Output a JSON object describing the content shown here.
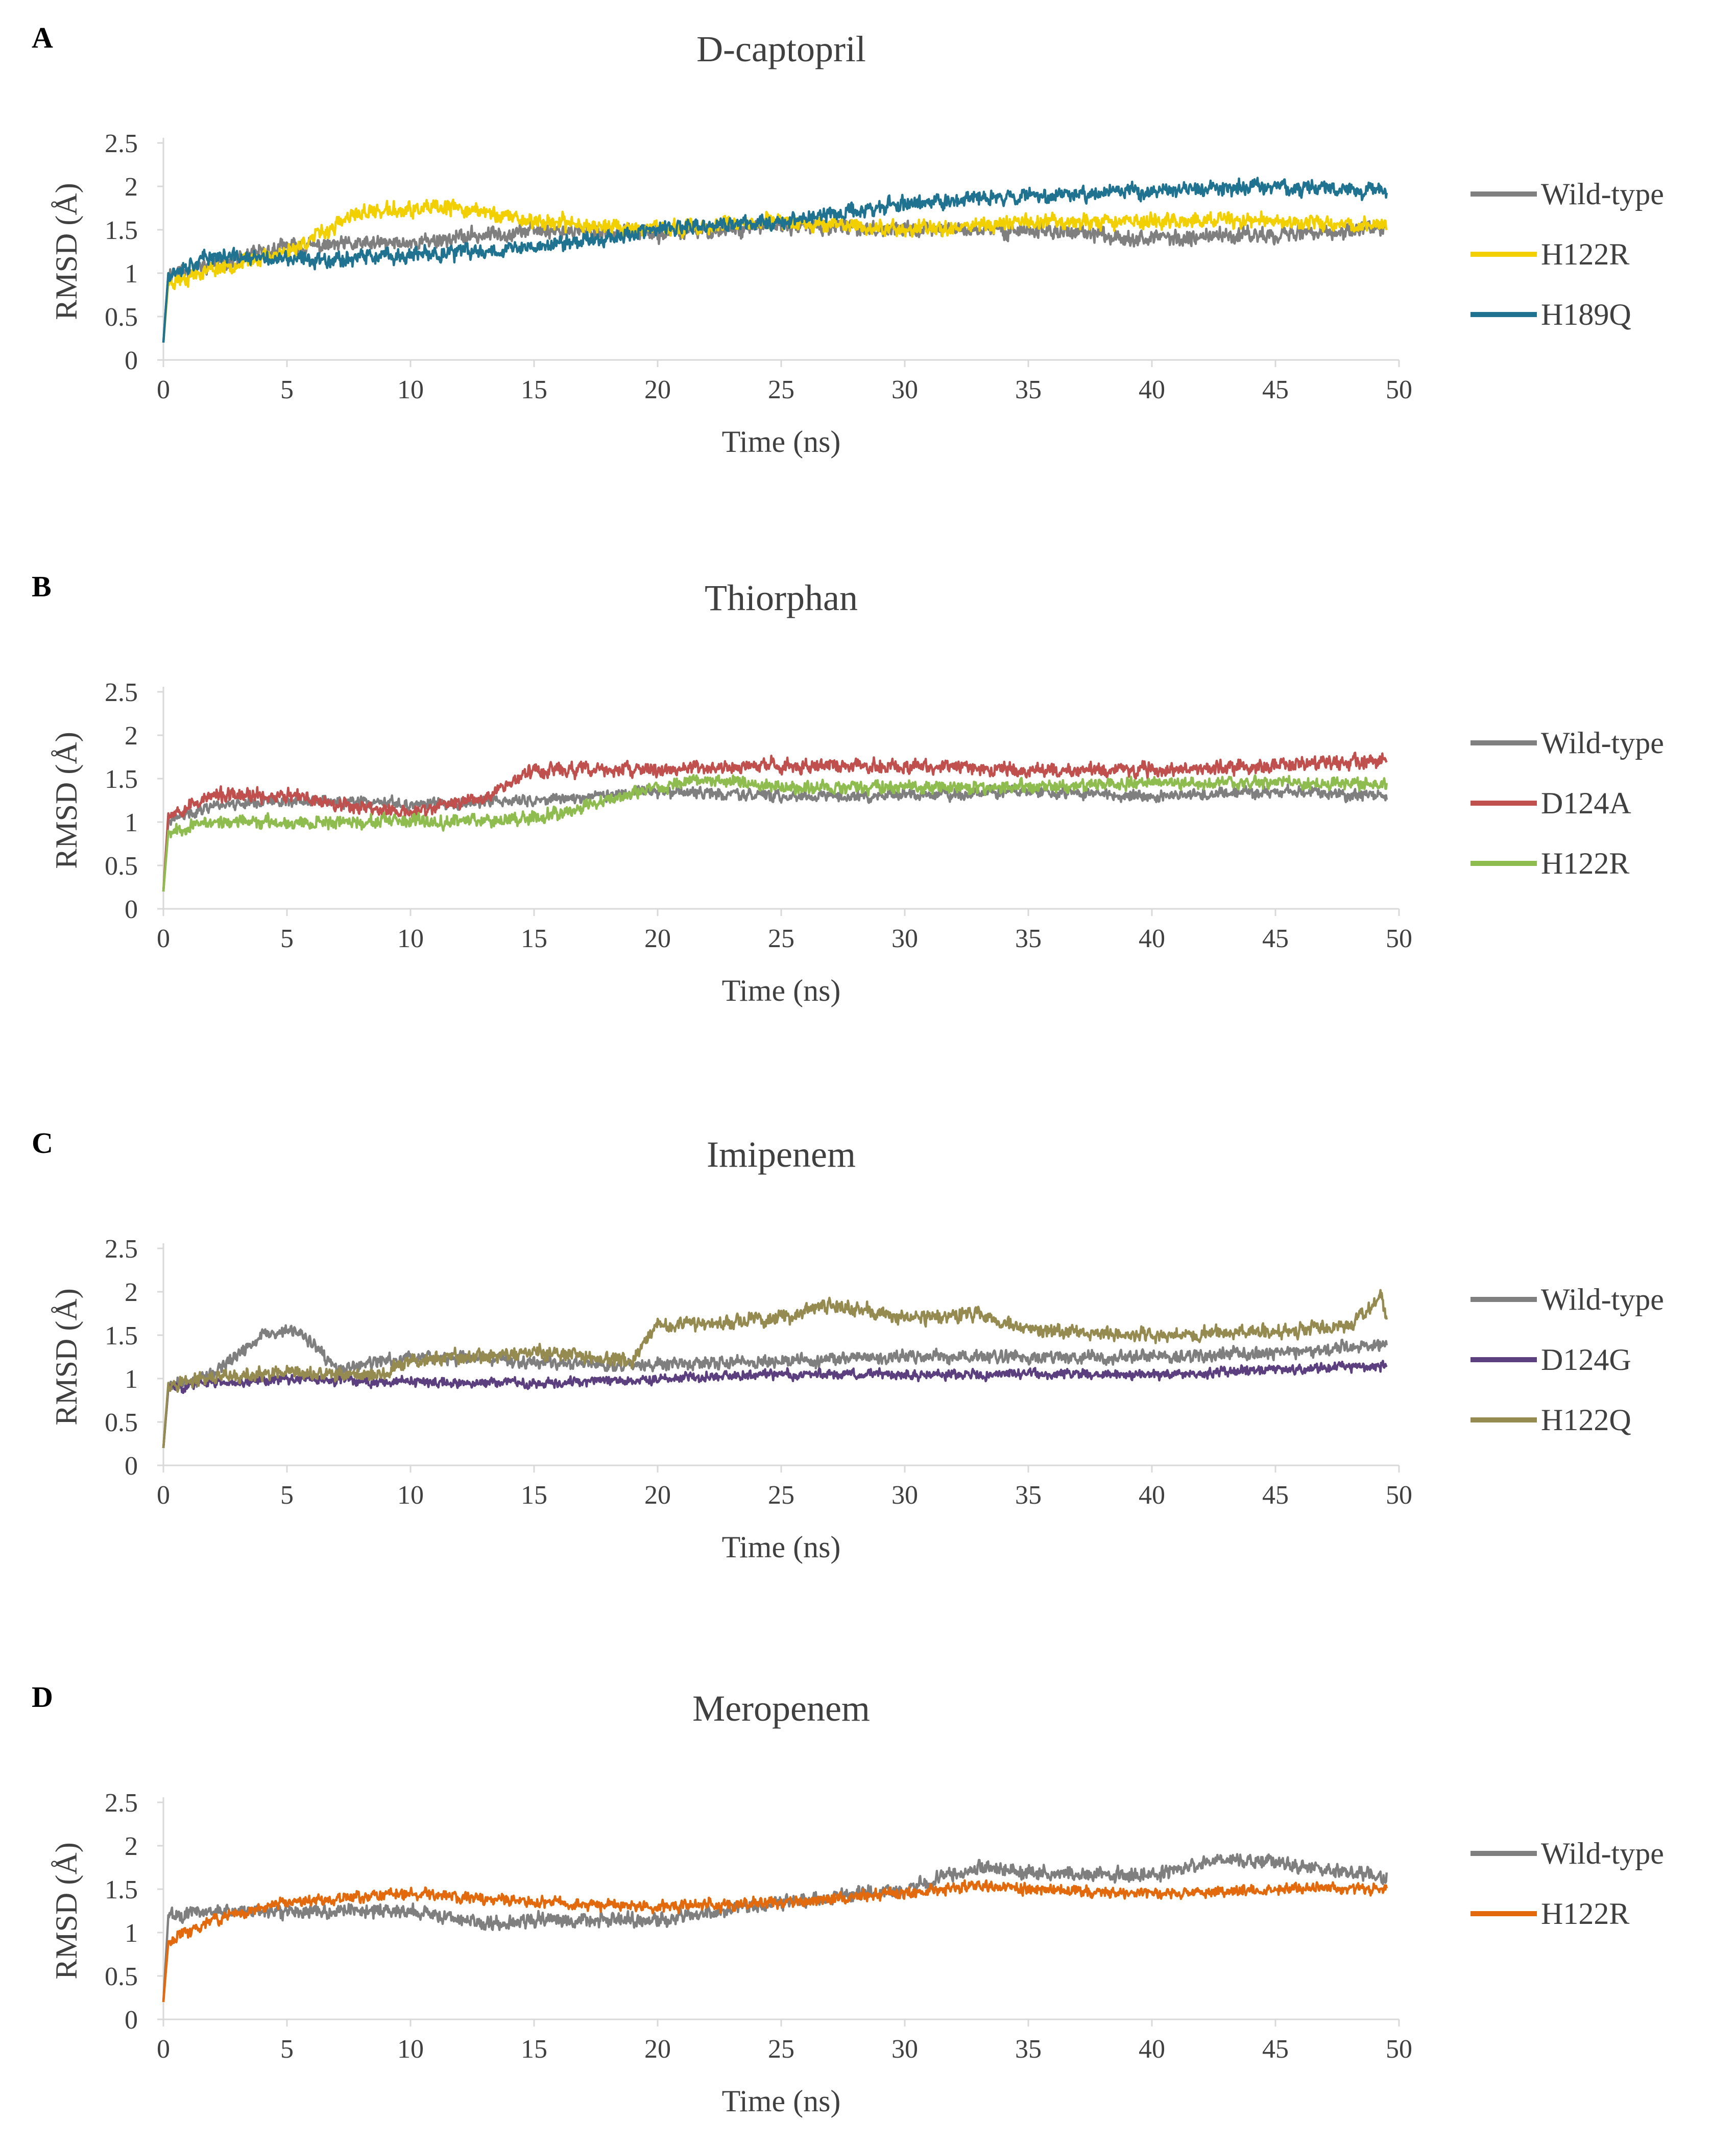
{
  "figure": {
    "panels": [
      "A",
      "B",
      "C",
      "D"
    ]
  },
  "chart_data": [
    {
      "type": "line",
      "panel_label": "A",
      "title": "D-captopril",
      "xlabel": "Time (ns)",
      "ylabel": "RMSD (Å)",
      "xlim": [
        0,
        50
      ],
      "ylim": [
        0,
        2.5
      ],
      "xticks": [
        "0",
        "5",
        "10",
        "15",
        "20",
        "25",
        "30",
        "35",
        "40",
        "45",
        "50"
      ],
      "yticks": [
        "0",
        "0.5",
        "1",
        "1.5",
        "2",
        "2.5"
      ],
      "legend": "right",
      "series": [
        {
          "name": "Wild-type",
          "color": "#7f7f7f",
          "noise": 0.11,
          "seed": 11,
          "trend": [
            [
              0,
              0.2
            ],
            [
              0.2,
              1.0
            ],
            [
              2,
              1.1
            ],
            [
              5,
              1.3
            ],
            [
              10,
              1.35
            ],
            [
              15,
              1.5
            ],
            [
              20,
              1.45
            ],
            [
              25,
              1.55
            ],
            [
              30,
              1.5
            ],
            [
              35,
              1.5
            ],
            [
              40,
              1.4
            ],
            [
              45,
              1.45
            ],
            [
              49.5,
              1.5
            ]
          ]
        },
        {
          "name": "H122R",
          "color": "#f2d000",
          "noise": 0.11,
          "seed": 23,
          "trend": [
            [
              0,
              0.2
            ],
            [
              0.2,
              0.9
            ],
            [
              2,
              1.05
            ],
            [
              5,
              1.25
            ],
            [
              8,
              1.7
            ],
            [
              12,
              1.75
            ],
            [
              15,
              1.6
            ],
            [
              20,
              1.5
            ],
            [
              25,
              1.6
            ],
            [
              30,
              1.5
            ],
            [
              35,
              1.6
            ],
            [
              40,
              1.6
            ],
            [
              45,
              1.6
            ],
            [
              49.5,
              1.55
            ]
          ]
        },
        {
          "name": "H189Q",
          "color": "#1f7391",
          "noise": 0.11,
          "seed": 37,
          "trend": [
            [
              0,
              0.2
            ],
            [
              0.2,
              1.0
            ],
            [
              2,
              1.2
            ],
            [
              5,
              1.15
            ],
            [
              10,
              1.2
            ],
            [
              15,
              1.3
            ],
            [
              20,
              1.5
            ],
            [
              25,
              1.6
            ],
            [
              30,
              1.8
            ],
            [
              35,
              1.9
            ],
            [
              40,
              1.95
            ],
            [
              45,
              2.0
            ],
            [
              49.5,
              1.95
            ]
          ]
        }
      ]
    },
    {
      "type": "line",
      "panel_label": "B",
      "title": "Thiorphan",
      "xlabel": "Time (ns)",
      "ylabel": "RMSD (Å)",
      "xlim": [
        0,
        50
      ],
      "ylim": [
        0,
        2.5
      ],
      "xticks": [
        "0",
        "5",
        "10",
        "15",
        "20",
        "25",
        "30",
        "35",
        "40",
        "45",
        "50"
      ],
      "yticks": [
        "0",
        "0.5",
        "1",
        "1.5",
        "2",
        "2.5"
      ],
      "legend": "right",
      "series": [
        {
          "name": "Wild-type",
          "color": "#7f7f7f",
          "noise": 0.08,
          "seed": 41,
          "trend": [
            [
              0,
              0.2
            ],
            [
              0.2,
              1.0
            ],
            [
              2,
              1.2
            ],
            [
              5,
              1.25
            ],
            [
              10,
              1.2
            ],
            [
              15,
              1.25
            ],
            [
              20,
              1.35
            ],
            [
              25,
              1.3
            ],
            [
              30,
              1.3
            ],
            [
              35,
              1.35
            ],
            [
              40,
              1.3
            ],
            [
              45,
              1.35
            ],
            [
              49.5,
              1.3
            ]
          ]
        },
        {
          "name": "D124A",
          "color": "#c0504d",
          "noise": 0.1,
          "seed": 53,
          "trend": [
            [
              0,
              0.2
            ],
            [
              0.2,
              1.1
            ],
            [
              2,
              1.3
            ],
            [
              5,
              1.3
            ],
            [
              10,
              1.1
            ],
            [
              13,
              1.3
            ],
            [
              15,
              1.6
            ],
            [
              20,
              1.6
            ],
            [
              25,
              1.65
            ],
            [
              30,
              1.65
            ],
            [
              35,
              1.6
            ],
            [
              40,
              1.6
            ],
            [
              45,
              1.65
            ],
            [
              49.5,
              1.7
            ]
          ]
        },
        {
          "name": "H122R",
          "color": "#8fbc4f",
          "noise": 0.09,
          "seed": 67,
          "trend": [
            [
              0,
              0.2
            ],
            [
              0.2,
              0.9
            ],
            [
              2,
              1.0
            ],
            [
              5,
              1.0
            ],
            [
              10,
              1.0
            ],
            [
              15,
              1.05
            ],
            [
              18,
              1.25
            ],
            [
              20,
              1.4
            ],
            [
              22,
              1.5
            ],
            [
              25,
              1.4
            ],
            [
              30,
              1.4
            ],
            [
              35,
              1.4
            ],
            [
              40,
              1.45
            ],
            [
              45,
              1.45
            ],
            [
              49.5,
              1.45
            ]
          ]
        }
      ]
    },
    {
      "type": "line",
      "panel_label": "C",
      "title": "Imipenem",
      "xlabel": "Time (ns)",
      "ylabel": "RMSD (Å)",
      "xlim": [
        0,
        50
      ],
      "ylim": [
        0,
        2.5
      ],
      "xticks": [
        "0",
        "5",
        "10",
        "15",
        "20",
        "25",
        "30",
        "35",
        "40",
        "45",
        "50"
      ],
      "yticks": [
        "0",
        "0.5",
        "1",
        "1.5",
        "2",
        "2.5"
      ],
      "legend": "right",
      "series": [
        {
          "name": "Wild-type",
          "color": "#7f7f7f",
          "noise": 0.09,
          "seed": 71,
          "trend": [
            [
              0,
              0.2
            ],
            [
              0.2,
              0.9
            ],
            [
              2,
              1.05
            ],
            [
              4,
              1.5
            ],
            [
              5.5,
              1.55
            ],
            [
              7,
              1.1
            ],
            [
              10,
              1.25
            ],
            [
              15,
              1.2
            ],
            [
              20,
              1.15
            ],
            [
              25,
              1.2
            ],
            [
              30,
              1.25
            ],
            [
              35,
              1.25
            ],
            [
              40,
              1.25
            ],
            [
              45,
              1.3
            ],
            [
              49.5,
              1.4
            ]
          ]
        },
        {
          "name": "D124G",
          "color": "#5b3f7f",
          "noise": 0.07,
          "seed": 83,
          "trend": [
            [
              0,
              0.2
            ],
            [
              0.2,
              0.9
            ],
            [
              2,
              0.95
            ],
            [
              5,
              1.0
            ],
            [
              10,
              0.95
            ],
            [
              15,
              0.95
            ],
            [
              20,
              1.0
            ],
            [
              25,
              1.05
            ],
            [
              30,
              1.05
            ],
            [
              35,
              1.05
            ],
            [
              40,
              1.05
            ],
            [
              45,
              1.1
            ],
            [
              49.5,
              1.15
            ]
          ]
        },
        {
          "name": "H122Q",
          "color": "#958a4f",
          "noise": 0.1,
          "seed": 97,
          "trend": [
            [
              0,
              0.2
            ],
            [
              0.2,
              0.95
            ],
            [
              2,
              1.0
            ],
            [
              5,
              1.05
            ],
            [
              9,
              1.05
            ],
            [
              10,
              1.2
            ],
            [
              15,
              1.3
            ],
            [
              19,
              1.2
            ],
            [
              20,
              1.6
            ],
            [
              25,
              1.7
            ],
            [
              27,
              1.85
            ],
            [
              30,
              1.7
            ],
            [
              33,
              1.75
            ],
            [
              35,
              1.55
            ],
            [
              40,
              1.5
            ],
            [
              45,
              1.55
            ],
            [
              48,
              1.6
            ],
            [
              49.3,
              1.95
            ],
            [
              49.5,
              1.65
            ]
          ]
        }
      ]
    },
    {
      "type": "line",
      "panel_label": "D",
      "title": "Meropenem",
      "xlabel": "Time (ns)",
      "ylabel": "RMSD (Å)",
      "xlim": [
        0,
        50
      ],
      "ylim": [
        0,
        2.5
      ],
      "xticks": [
        "0",
        "5",
        "10",
        "15",
        "20",
        "25",
        "30",
        "35",
        "40",
        "45",
        "50"
      ],
      "yticks": [
        "0",
        "0.5",
        "1",
        "1.5",
        "2",
        "2.5"
      ],
      "legend": "right",
      "series": [
        {
          "name": "Wild-type",
          "color": "#7f7f7f",
          "noise": 0.1,
          "seed": 101,
          "trend": [
            [
              0,
              0.2
            ],
            [
              0.2,
              1.2
            ],
            [
              2,
              1.25
            ],
            [
              5,
              1.25
            ],
            [
              10,
              1.25
            ],
            [
              13,
              1.1
            ],
            [
              15,
              1.15
            ],
            [
              20,
              1.15
            ],
            [
              25,
              1.35
            ],
            [
              30,
              1.5
            ],
            [
              33,
              1.75
            ],
            [
              35,
              1.7
            ],
            [
              40,
              1.65
            ],
            [
              43,
              1.85
            ],
            [
              45,
              1.8
            ],
            [
              49.5,
              1.65
            ]
          ]
        },
        {
          "name": "H122R",
          "color": "#e26a0c",
          "noise": 0.08,
          "seed": 113,
          "trend": [
            [
              0,
              0.2
            ],
            [
              0.2,
              0.9
            ],
            [
              2,
              1.15
            ],
            [
              5,
              1.35
            ],
            [
              10,
              1.45
            ],
            [
              15,
              1.35
            ],
            [
              20,
              1.3
            ],
            [
              25,
              1.35
            ],
            [
              30,
              1.45
            ],
            [
              33,
              1.55
            ],
            [
              35,
              1.5
            ],
            [
              40,
              1.45
            ],
            [
              45,
              1.5
            ],
            [
              49.5,
              1.5
            ]
          ]
        }
      ]
    }
  ]
}
